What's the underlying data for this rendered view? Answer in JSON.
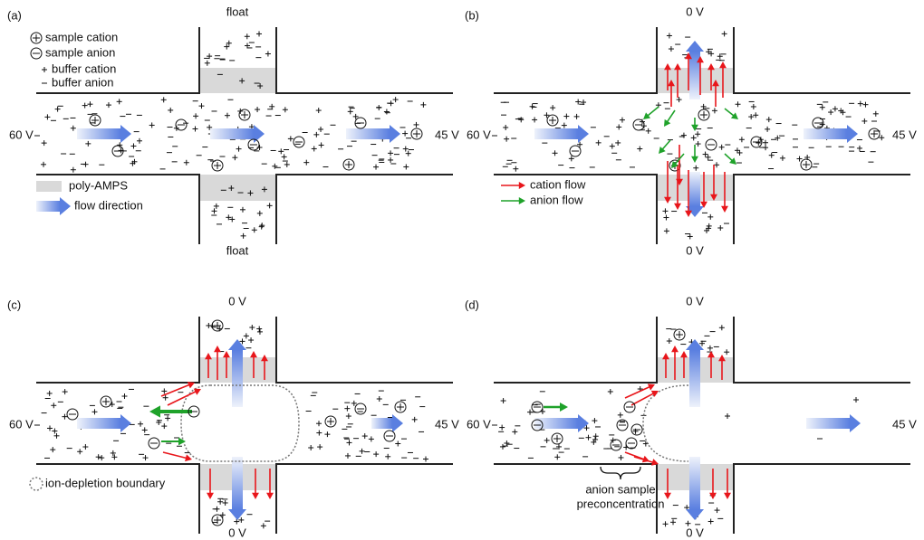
{
  "panels": [
    {
      "label": "(a)",
      "top": "float",
      "bottom": "float",
      "left": "60 V",
      "right": "45 V"
    },
    {
      "label": "(b)",
      "top": "0 V",
      "bottom": "0 V",
      "left": "60 V",
      "right": "45 V"
    },
    {
      "label": "(c)",
      "top": "0 V",
      "bottom": "0 V",
      "left": "60 V",
      "right": "45 V"
    },
    {
      "label": "(d)",
      "top": "0 V",
      "bottom": "0 V",
      "left": "60 V",
      "right": "45 V"
    }
  ],
  "legend_a": {
    "sample_cation": "sample cation",
    "sample_anion": "sample anion",
    "buffer_cation": "buffer cation",
    "buffer_anion": "buffer anion",
    "poly_amps": "poly-AMPS",
    "flow_direction": "flow direction"
  },
  "legend_b": {
    "cation_flow": "cation flow",
    "anion_flow": "anion flow"
  },
  "legend_c": {
    "boundary": "ion-depletion boundary"
  },
  "annotation_d": [
    "anion sample",
    "preconcentration"
  ]
}
